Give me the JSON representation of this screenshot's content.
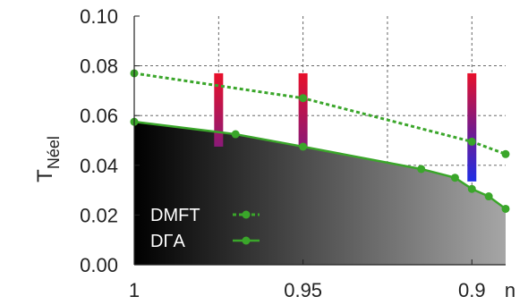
{
  "chart_data": {
    "type": "line",
    "xlabel": "n",
    "ylabel_main": "T",
    "ylabel_sub": "Néel",
    "xlim": [
      1.0,
      0.89
    ],
    "ylim": [
      0.0,
      0.1
    ],
    "x_reversed": true,
    "xticks": [
      {
        "value": 1.0,
        "label": "1"
      },
      {
        "value": 0.95,
        "label": "0.95"
      },
      {
        "value": 0.9,
        "label": "0.9"
      }
    ],
    "yticks": [
      {
        "value": 0.0,
        "label": "0.00"
      },
      {
        "value": 0.02,
        "label": "0.02"
      },
      {
        "value": 0.04,
        "label": "0.04"
      },
      {
        "value": 0.06,
        "label": "0.06"
      },
      {
        "value": 0.08,
        "label": "0.08"
      },
      {
        "value": 0.1,
        "label": "0.10"
      }
    ],
    "grid": true,
    "legend_position": "bottom-left",
    "series": [
      {
        "name": "DMFT",
        "style": "dashed",
        "color": "#3aa62a",
        "x": [
          1.0,
          0.95,
          0.9,
          0.89
        ],
        "y": [
          0.077,
          0.067,
          0.0495,
          0.0445
        ]
      },
      {
        "name": "DΓA",
        "style": "solid",
        "color": "#3aa62a",
        "x": [
          1.0,
          0.97,
          0.95,
          0.915,
          0.905,
          0.9,
          0.895,
          0.89
        ],
        "y": [
          0.0575,
          0.0525,
          0.0475,
          0.0385,
          0.035,
          0.0305,
          0.0275,
          0.0225
        ]
      }
    ],
    "color_columns": [
      {
        "x": 0.975,
        "y_range": [
          0.0475,
          0.077
        ],
        "colors": [
          "#e8102a",
          "#8a1a78"
        ]
      },
      {
        "x": 0.95,
        "y_range": [
          0.0475,
          0.077
        ],
        "colors": [
          "#e8102a",
          "#8a1a78"
        ]
      },
      {
        "x": 0.9,
        "y_range": [
          0.0335,
          0.077
        ],
        "colors": [
          "#e8102a",
          "#7a1a88",
          "#1f2ee6"
        ]
      }
    ],
    "shaded_region": {
      "below_series": "DΓA",
      "gradient": [
        "#000000",
        "#a6a6a6"
      ]
    }
  }
}
